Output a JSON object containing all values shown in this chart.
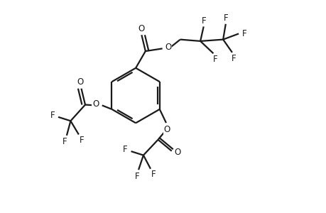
{
  "background_color": "#ffffff",
  "line_color": "#1a1a1a",
  "line_width": 1.6,
  "font_size": 8.5,
  "figsize": [
    4.6,
    3.0
  ],
  "dpi": 100,
  "xlim": [
    0,
    10
  ],
  "ylim": [
    0,
    6.52
  ]
}
